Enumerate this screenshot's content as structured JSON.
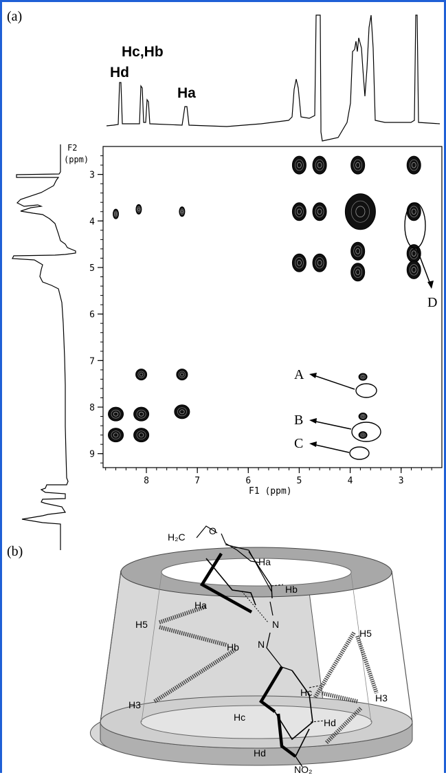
{
  "panel_a": {
    "label": "(a)",
    "peak_labels": {
      "hd": "Hd",
      "hc_hb": "Hc,Hb",
      "ha": "Ha"
    },
    "f2_axis_label_line1": "F2",
    "f2_axis_label_line2": "(ppm)",
    "f1_axis_label": "F1 (ppm)",
    "x_ticks": [
      "8",
      "7",
      "6",
      "5",
      "4",
      "3"
    ],
    "y_ticks": [
      "3",
      "4",
      "5",
      "6",
      "7",
      "8",
      "9"
    ],
    "annotations": [
      "A",
      "B",
      "C",
      "D"
    ]
  },
  "panel_b": {
    "label": "(b)",
    "atoms": {
      "h2c": "H₂C",
      "o": "O",
      "ha_top": "Ha",
      "ha_inner": "Ha",
      "hb_right": "Hb",
      "hb_inner": "Hb",
      "h5_left": "H5",
      "h3_left": "H3",
      "h5_right": "H5",
      "h3_right": "H3",
      "n_top": "N",
      "n_bottom": "N",
      "hc_right": "Hc",
      "hc_left": "Hc",
      "hd_right": "Hd",
      "hd_left": "Hd",
      "no2": "NO₂"
    }
  },
  "chart_data": {
    "type": "scatter",
    "title": "",
    "xlabel": "F1 (ppm)",
    "ylabel": "F2 (ppm)",
    "xlim": [
      8.85,
      2.2
    ],
    "ylim": [
      2.4,
      9.3
    ],
    "x_reversed": true,
    "y_reversed": true,
    "cross_peaks": [
      {
        "x": 8.6,
        "y": 8.15
      },
      {
        "x": 8.6,
        "y": 8.6
      },
      {
        "x": 8.1,
        "y": 8.15
      },
      {
        "x": 8.1,
        "y": 8.6
      },
      {
        "x": 8.1,
        "y": 7.3
      },
      {
        "x": 7.3,
        "y": 7.3
      },
      {
        "x": 7.3,
        "y": 8.1
      },
      {
        "x": 8.6,
        "y": 3.85
      },
      {
        "x": 8.15,
        "y": 3.75
      },
      {
        "x": 7.3,
        "y": 3.8
      },
      {
        "x": 5.0,
        "y": 2.8
      },
      {
        "x": 4.6,
        "y": 2.8
      },
      {
        "x": 3.85,
        "y": 2.8
      },
      {
        "x": 2.75,
        "y": 2.8
      },
      {
        "x": 5.0,
        "y": 3.8
      },
      {
        "x": 4.6,
        "y": 3.8
      },
      {
        "x": 3.8,
        "y": 3.8
      },
      {
        "x": 2.75,
        "y": 3.8
      },
      {
        "x": 5.0,
        "y": 4.9
      },
      {
        "x": 4.6,
        "y": 4.9
      },
      {
        "x": 3.85,
        "y": 4.65
      },
      {
        "x": 3.85,
        "y": 5.1
      },
      {
        "x": 2.75,
        "y": 4.7
      },
      {
        "x": 2.75,
        "y": 5.05
      },
      {
        "x": 3.75,
        "y": 7.35
      },
      {
        "x": 3.75,
        "y": 8.2
      },
      {
        "x": 3.75,
        "y": 8.6
      }
    ]
  }
}
